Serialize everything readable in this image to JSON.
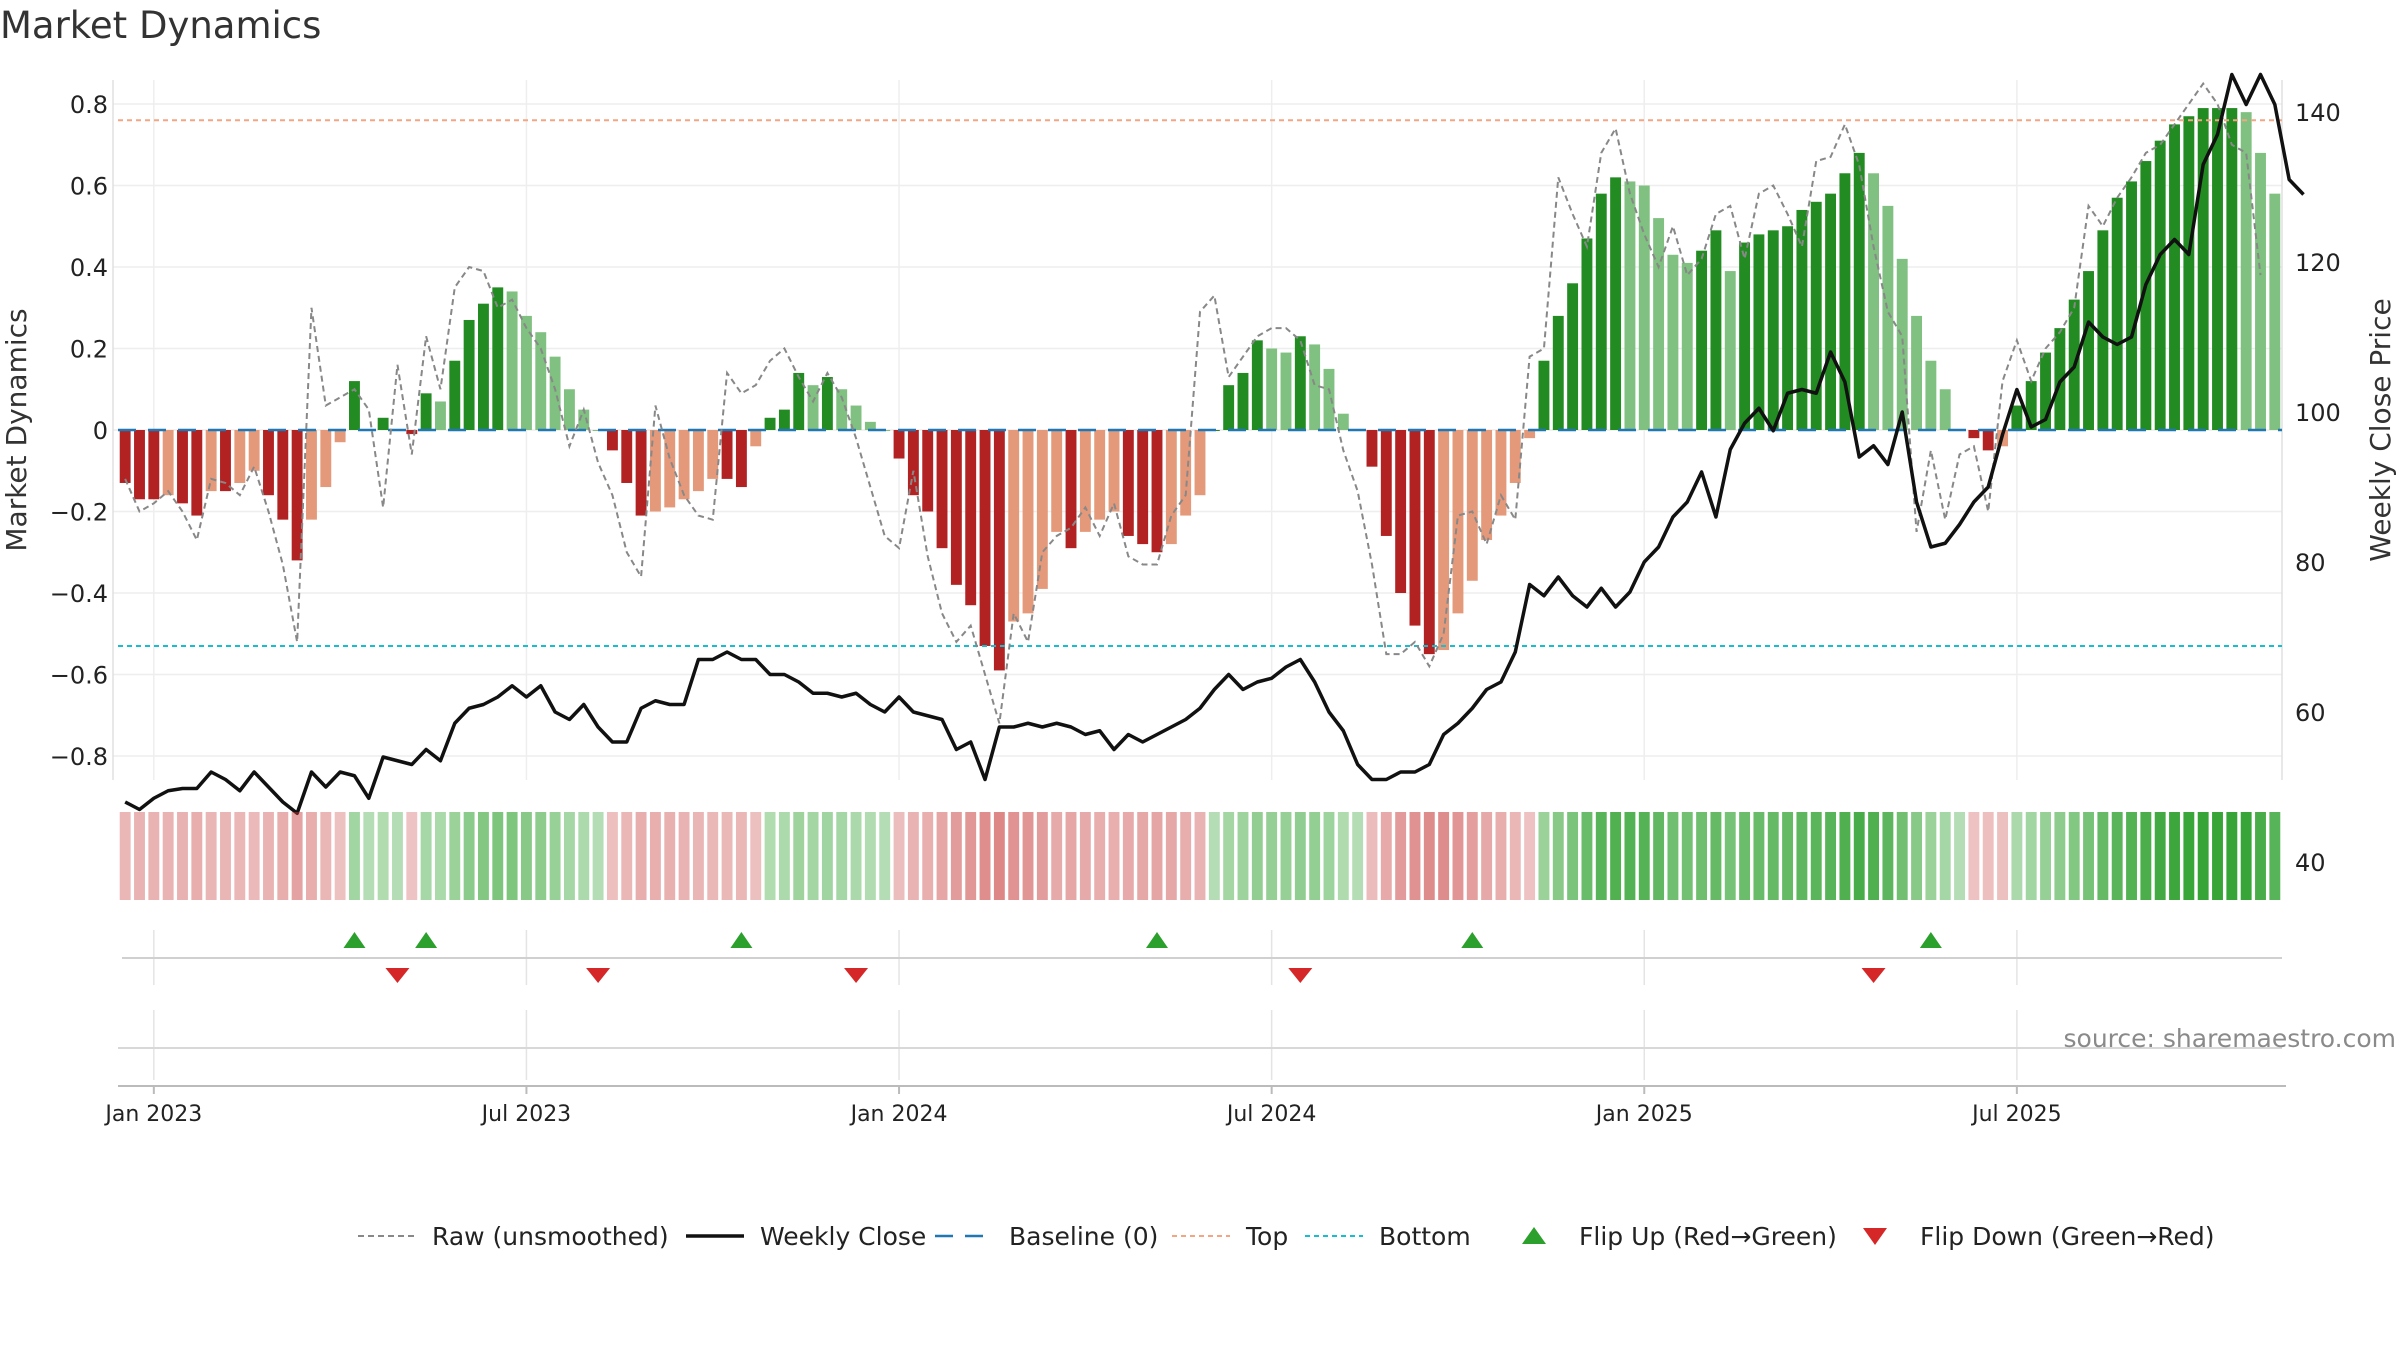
{
  "page": {
    "title": "Market Dynamics"
  },
  "chart_data": {
    "type": "bar",
    "title": "Market Dynamics",
    "source": "source: sharemaestro.com",
    "ylabel_left": "Market Dynamics",
    "ylabel_right": "Weekly Close Price",
    "ylim_left": [
      -0.86,
      0.86
    ],
    "ylim_right": [
      38,
      152
    ],
    "yticks_left": [
      "−0.8",
      "−0.6",
      "−0.4",
      "−0.2",
      "0",
      "0.2",
      "0.4",
      "0.6",
      "0.8"
    ],
    "yticks_left_values": [
      -0.8,
      -0.6,
      -0.4,
      -0.2,
      0,
      0.2,
      0.4,
      0.6,
      0.8
    ],
    "yticks_right": [
      "40",
      "60",
      "80",
      "100",
      "120",
      "140"
    ],
    "yticks_right_values": [
      40,
      60,
      80,
      100,
      120,
      140
    ],
    "xticks": [
      "Jan 2023",
      "Jul 2023",
      "Jan 2024",
      "Jul 2024",
      "Jan 2025",
      "Jul 2025"
    ],
    "xticks_week_index": [
      2,
      28,
      54,
      80,
      106,
      132
    ],
    "start_week": "2022-12-19",
    "top_threshold": 0.76,
    "bottom_threshold": -0.53,
    "baseline": 0,
    "colors": {
      "strong_green": "#228b22",
      "light_green": "#80c080",
      "strong_red": "#b22222",
      "light_red": "#e49a7a",
      "close_line": "#111111",
      "raw_line": "#888888",
      "baseline": "#1f77b4",
      "top": "#f4a582",
      "bottom": "#17becf",
      "flip_up": "#2ca02c",
      "flip_down": "#d62728"
    },
    "series": [
      {
        "name": "Market Dynamics",
        "values": [
          -0.13,
          -0.17,
          -0.17,
          -0.16,
          -0.18,
          -0.21,
          -0.15,
          -0.15,
          -0.13,
          -0.1,
          -0.16,
          -0.22,
          -0.32,
          -0.22,
          -0.14,
          -0.03,
          0.12,
          0.0,
          0.03,
          0.0,
          -0.01,
          0.09,
          0.07,
          0.17,
          0.27,
          0.31,
          0.35,
          0.34,
          0.28,
          0.24,
          0.18,
          0.1,
          0.05,
          0.0,
          -0.05,
          -0.13,
          -0.21,
          -0.2,
          -0.19,
          -0.17,
          -0.15,
          -0.12,
          -0.12,
          -0.14,
          -0.04,
          0.03,
          0.05,
          0.14,
          0.11,
          0.13,
          0.1,
          0.06,
          0.02,
          0.0,
          -0.07,
          -0.16,
          -0.2,
          -0.29,
          -0.38,
          -0.43,
          -0.53,
          -0.59,
          -0.47,
          -0.45,
          -0.39,
          -0.25,
          -0.29,
          -0.25,
          -0.22,
          -0.2,
          -0.26,
          -0.28,
          -0.3,
          -0.28,
          -0.21,
          -0.16,
          0.0,
          0.11,
          0.14,
          0.22,
          0.2,
          0.19,
          0.23,
          0.21,
          0.15,
          0.04,
          0.0,
          -0.09,
          -0.26,
          -0.4,
          -0.48,
          -0.55,
          -0.54,
          -0.45,
          -0.37,
          -0.27,
          -0.21,
          -0.13,
          -0.02,
          0.17,
          0.28,
          0.36,
          0.47,
          0.58,
          0.62,
          0.61,
          0.6,
          0.52,
          0.43,
          0.41,
          0.44,
          0.49,
          0.39,
          0.46,
          0.48,
          0.49,
          0.5,
          0.54,
          0.56,
          0.58,
          0.63,
          0.68,
          0.63,
          0.55,
          0.42,
          0.28,
          0.17,
          0.1,
          0.0,
          -0.02,
          -0.05,
          -0.04,
          0.06,
          0.12,
          0.19,
          0.25,
          0.32,
          0.39,
          0.49,
          0.57,
          0.61,
          0.66,
          0.71,
          0.75,
          0.77,
          0.79,
          0.79,
          0.79,
          0.78,
          0.68,
          0.58
        ]
      },
      {
        "name": "Raw (unsmoothed)",
        "values": [
          -0.12,
          -0.2,
          -0.18,
          -0.15,
          -0.2,
          -0.27,
          -0.12,
          -0.13,
          -0.16,
          -0.09,
          -0.2,
          -0.33,
          -0.52,
          0.3,
          0.06,
          0.08,
          0.1,
          0.05,
          -0.19,
          0.16,
          -0.06,
          0.23,
          0.1,
          0.35,
          0.4,
          0.39,
          0.3,
          0.32,
          0.25,
          0.2,
          0.1,
          -0.04,
          0.05,
          -0.08,
          -0.16,
          -0.3,
          -0.36,
          0.06,
          -0.07,
          -0.16,
          -0.21,
          -0.22,
          0.14,
          0.09,
          0.11,
          0.17,
          0.2,
          0.13,
          0.07,
          0.14,
          0.08,
          -0.02,
          -0.14,
          -0.26,
          -0.29,
          -0.1,
          -0.31,
          -0.45,
          -0.52,
          -0.48,
          -0.6,
          -0.72,
          -0.45,
          -0.52,
          -0.3,
          -0.26,
          -0.24,
          -0.19,
          -0.26,
          -0.18,
          -0.31,
          -0.33,
          -0.33,
          -0.21,
          -0.16,
          0.29,
          0.33,
          0.13,
          0.18,
          0.23,
          0.25,
          0.25,
          0.22,
          0.11,
          0.1,
          -0.05,
          -0.15,
          -0.33,
          -0.55,
          -0.55,
          -0.52,
          -0.58,
          -0.5,
          -0.21,
          -0.2,
          -0.28,
          -0.16,
          -0.22,
          0.18,
          0.2,
          0.62,
          0.53,
          0.45,
          0.68,
          0.74,
          0.58,
          0.48,
          0.4,
          0.5,
          0.38,
          0.42,
          0.53,
          0.55,
          0.42,
          0.58,
          0.6,
          0.53,
          0.45,
          0.66,
          0.67,
          0.75,
          0.65,
          0.45,
          0.29,
          0.23,
          -0.25,
          -0.05,
          -0.22,
          -0.06,
          -0.04,
          -0.2,
          0.12,
          0.22,
          0.12,
          0.2,
          0.24,
          0.3,
          0.55,
          0.5,
          0.57,
          0.62,
          0.68,
          0.7,
          0.75,
          0.8,
          0.85,
          0.8,
          0.7,
          0.68,
          0.38
        ]
      },
      {
        "name": "Weekly Close",
        "values": [
          48,
          47,
          48.5,
          49.5,
          49.8,
          49.8,
          52,
          51,
          49.5,
          52,
          50,
          48,
          46.5,
          52,
          50,
          52,
          51.5,
          48.5,
          54,
          53.5,
          53,
          55,
          53.5,
          58.5,
          60.5,
          61,
          62,
          63.5,
          62,
          63.5,
          60,
          59,
          61,
          58,
          56,
          56,
          60.5,
          61.5,
          61,
          61,
          67,
          67,
          68,
          67,
          67,
          65,
          65,
          64,
          62.5,
          62.5,
          62,
          62.5,
          61,
          60,
          62,
          60,
          59.5,
          59,
          55,
          56,
          51,
          58,
          58,
          58.5,
          58,
          58.5,
          58,
          57,
          57.5,
          55,
          57,
          56,
          57,
          58,
          59,
          60.5,
          63,
          65,
          63,
          64,
          64.5,
          66,
          67,
          64,
          60,
          57.5,
          53,
          51,
          51,
          52,
          52,
          53,
          57,
          58.5,
          60.5,
          63,
          64,
          68,
          77,
          75.5,
          78,
          75.5,
          74,
          76.5,
          74,
          76,
          80,
          82,
          86,
          88,
          92,
          86,
          95,
          98.5,
          100.5,
          97.5,
          102.5,
          103,
          102.5,
          108,
          104,
          94,
          95.5,
          93,
          100,
          88,
          82,
          82.5,
          85,
          88,
          90,
          97,
          103,
          98,
          99,
          104,
          106,
          112,
          110,
          109,
          110,
          117,
          121,
          123,
          121,
          133,
          137,
          145,
          141,
          145,
          141,
          131,
          129
        ]
      }
    ],
    "ribbon_values": [
      -0.13,
      -0.17,
      -0.17,
      -0.16,
      -0.18,
      -0.21,
      -0.15,
      -0.15,
      -0.13,
      -0.1,
      -0.16,
      -0.22,
      -0.32,
      -0.22,
      -0.14,
      -0.03,
      0.12,
      0.0,
      0.03,
      0.0,
      -0.01,
      0.09,
      0.07,
      0.17,
      0.27,
      0.31,
      0.35,
      0.34,
      0.28,
      0.24,
      0.18,
      0.1,
      0.05,
      0.0,
      -0.05,
      -0.13,
      -0.21,
      -0.2,
      -0.19,
      -0.17,
      -0.15,
      -0.12,
      -0.12,
      -0.14,
      -0.04,
      0.03,
      0.05,
      0.14,
      0.11,
      0.13,
      0.1,
      0.06,
      0.02,
      0.0,
      -0.07,
      -0.16,
      -0.2,
      -0.29,
      -0.38,
      -0.43,
      -0.53,
      -0.59,
      -0.47,
      -0.45,
      -0.39,
      -0.25,
      -0.29,
      -0.25,
      -0.22,
      -0.2,
      -0.26,
      -0.28,
      -0.3,
      -0.28,
      -0.21,
      -0.16,
      0.0,
      0.11,
      0.14,
      0.22,
      0.2,
      0.19,
      0.23,
      0.21,
      0.15,
      0.04,
      0.0,
      -0.09,
      -0.26,
      -0.4,
      -0.48,
      -0.55,
      -0.54,
      -0.45,
      -0.37,
      -0.27,
      -0.21,
      -0.13,
      -0.02,
      0.17,
      0.28,
      0.36,
      0.47,
      0.58,
      0.62,
      0.61,
      0.6,
      0.52,
      0.43,
      0.41,
      0.44,
      0.49,
      0.39,
      0.46,
      0.48,
      0.49,
      0.5,
      0.54,
      0.56,
      0.58,
      0.63,
      0.68,
      0.63,
      0.55,
      0.42,
      0.28,
      0.17,
      0.1,
      0.0,
      -0.02,
      -0.05,
      -0.04,
      0.06,
      0.12,
      0.19,
      0.25,
      0.32,
      0.39,
      0.49,
      0.57,
      0.61,
      0.66,
      0.71,
      0.75,
      0.77,
      0.79,
      0.79,
      0.79,
      0.78,
      0.68,
      0.58
    ],
    "flip_up_weeks": [
      16,
      21,
      43,
      72,
      94,
      126
    ],
    "flip_down_weeks": [
      19,
      33,
      51,
      82,
      122
    ],
    "legend": [
      {
        "label": "Raw (unsmoothed)",
        "style": "raw"
      },
      {
        "label": "Weekly Close",
        "style": "close"
      },
      {
        "label": "Baseline (0)",
        "style": "baseline"
      },
      {
        "label": "Top",
        "style": "top"
      },
      {
        "label": "Bottom",
        "style": "bottom"
      },
      {
        "label": "Flip Up (Red→Green)",
        "style": "up"
      },
      {
        "label": "Flip Down (Green→Red)",
        "style": "down"
      }
    ]
  }
}
